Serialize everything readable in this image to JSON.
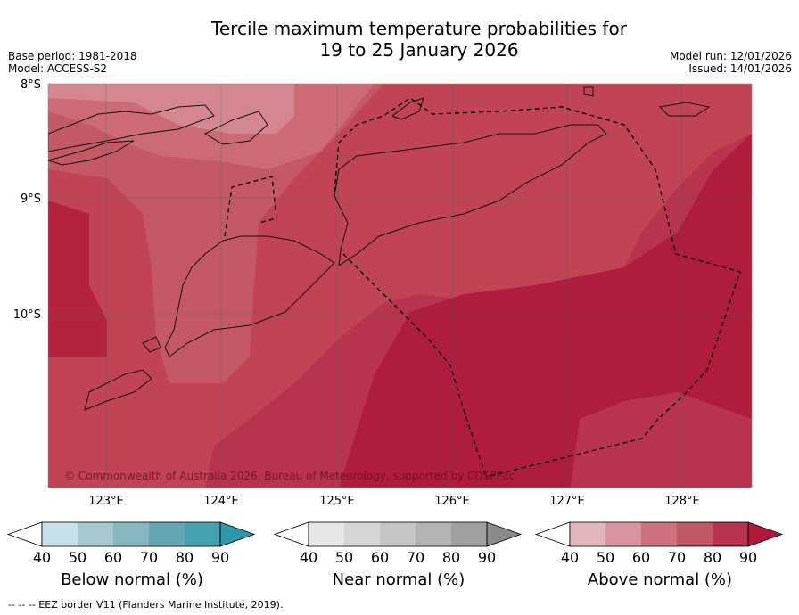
{
  "title_line1": "Tercile maximum temperature probabilities for",
  "title_line2": "19 to 25 January 2026",
  "meta_left": {
    "base_period": "Base period: 1981-2018",
    "model": "Model: ACCESS-S2"
  },
  "meta_right": {
    "model_run": "Model run: 12/01/2026",
    "issued": "Issued: 14/01/2026"
  },
  "map": {
    "lat_labels": [
      "8°S",
      "9°S",
      "10°S"
    ],
    "lon_labels": [
      "123°E",
      "124°E",
      "125°E",
      "126°E",
      "127°E",
      "128°E"
    ],
    "copyright": "© Commonwealth of Australia 2026, Bureau of Meteorology, supported by COSPPac"
  },
  "colorbars": [
    {
      "label": "Below normal (%)",
      "ticks": [
        "40",
        "50",
        "60",
        "70",
        "80",
        "90"
      ],
      "colors": [
        "#c8e1e8",
        "#a7c8cd",
        "#86b6c0",
        "#66a5b3",
        "#45a0b0",
        "#2f97ab"
      ]
    },
    {
      "label": "Near normal (%)",
      "ticks": [
        "40",
        "50",
        "60",
        "70",
        "80",
        "90"
      ],
      "colors": [
        "#e6e6e6",
        "#d6d6d6",
        "#c6c6c6",
        "#b3b3b3",
        "#a0a0a0",
        "#8a8a8a"
      ]
    },
    {
      "label": "Above normal (%)",
      "ticks": [
        "40",
        "50",
        "60",
        "70",
        "80",
        "90"
      ],
      "colors": [
        "#e3b6bd",
        "#d8959f",
        "#cc727f",
        "#c05865",
        "#b8334d",
        "#ad1a3c"
      ]
    }
  ],
  "footer": "--  --  -- EEZ border V11 (Flanders Marine Institute, 2019)."
}
